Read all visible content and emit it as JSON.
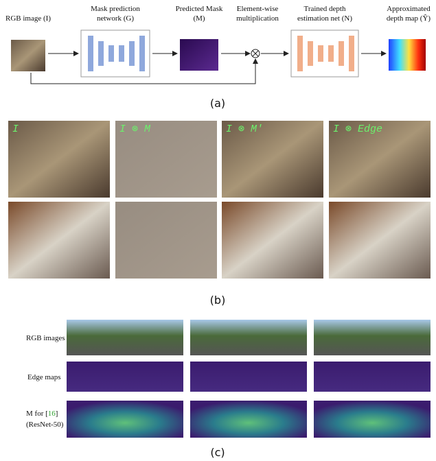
{
  "panel_a": {
    "labels": [
      [
        "RGB image (I)"
      ],
      [
        "Mask prediction",
        "network (G)"
      ],
      [
        "Predicted Mask",
        "(M)"
      ],
      [
        "Element-wise",
        "multiplication"
      ],
      [
        "Trained depth",
        "estimation net (N)"
      ],
      [
        "Approximated",
        "depth map (Ŷ)"
      ]
    ],
    "caption": "(a)"
  },
  "panel_b": {
    "overlays": [
      "I",
      "I ⊗ M",
      "I ⊗ M′",
      "I ⊗ Edge"
    ],
    "caption": "(b)"
  },
  "panel_c": {
    "rows": [
      {
        "label": "RGB images"
      },
      {
        "label": "Edge maps"
      },
      {
        "label": "M for [",
        "ref": "16",
        "after": "]",
        "note": "(ResNet-50)"
      }
    ],
    "caption": "(c)"
  }
}
